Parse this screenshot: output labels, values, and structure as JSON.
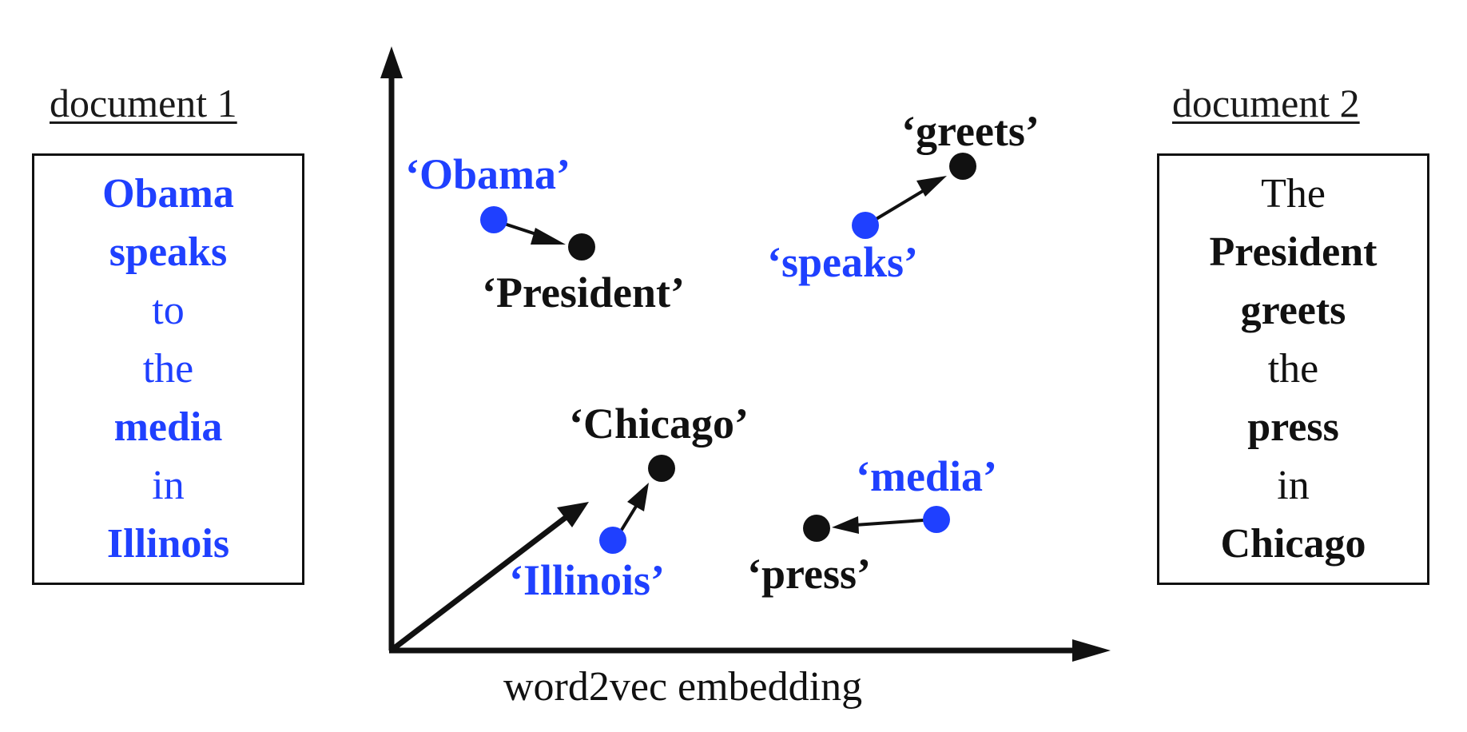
{
  "colors": {
    "blue": "#1f40ff",
    "dark": "#111111"
  },
  "document1": {
    "title": "document 1",
    "words": [
      {
        "text": "Obama",
        "bold": true
      },
      {
        "text": "speaks",
        "bold": true
      },
      {
        "text": "to",
        "bold": false
      },
      {
        "text": "the",
        "bold": false
      },
      {
        "text": "media",
        "bold": true
      },
      {
        "text": "in",
        "bold": false
      },
      {
        "text": "Illinois",
        "bold": true
      }
    ]
  },
  "document2": {
    "title": "document 2",
    "words": [
      {
        "text": "The",
        "bold": false
      },
      {
        "text": "President",
        "bold": true
      },
      {
        "text": "greets",
        "bold": true
      },
      {
        "text": "the",
        "bold": false
      },
      {
        "text": "press",
        "bold": true
      },
      {
        "text": "in",
        "bold": false
      },
      {
        "text": "Chicago",
        "bold": true
      }
    ]
  },
  "embedding": {
    "axis_label": "word2vec embedding",
    "points": [
      {
        "label": "‘Obama’",
        "group": "document1"
      },
      {
        "label": "‘President’",
        "group": "document2"
      },
      {
        "label": "‘speaks’",
        "group": "document1"
      },
      {
        "label": "‘greets’",
        "group": "document2"
      },
      {
        "label": "‘Chicago’",
        "group": "document2"
      },
      {
        "label": "‘Illinois’",
        "group": "document1"
      },
      {
        "label": "‘media’",
        "group": "document1"
      },
      {
        "label": "‘press’",
        "group": "document2"
      }
    ]
  }
}
